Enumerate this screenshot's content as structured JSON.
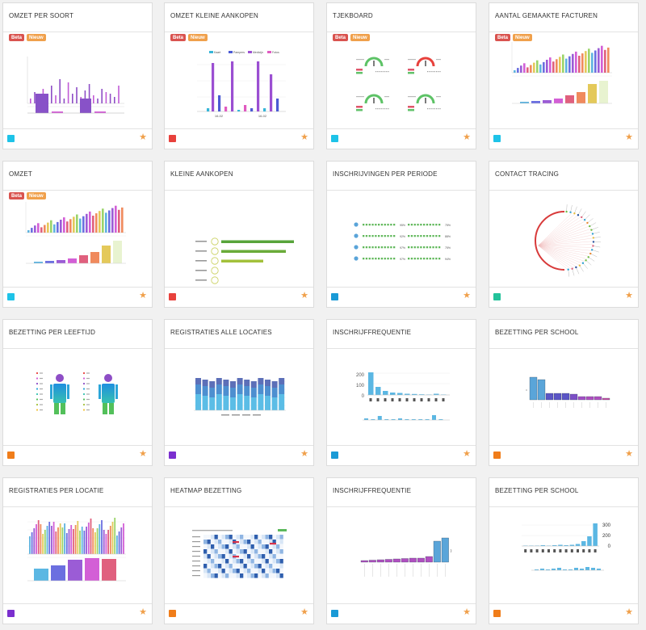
{
  "tiles": [
    {
      "title": "OMZET PER SOORT",
      "chip": "#1ec3e8",
      "badges": [
        "Beta",
        "Nieuw"
      ]
    },
    {
      "title": "OMZET KLEINE AANKOPEN",
      "chip": "#e8413c",
      "badges": [
        "Beta",
        "Nieuw"
      ]
    },
    {
      "title": "TJEKBOARD",
      "chip": "#1ec3e8",
      "badges": [
        "Beta",
        "Nieuw"
      ]
    },
    {
      "title": "AANTAL GEMAAKTE FACTUREN",
      "chip": "#1ec3e8",
      "badges": [
        "Beta",
        "Nieuw"
      ]
    },
    {
      "title": "OMZET",
      "chip": "#1ec3e8",
      "badges": [
        "Beta",
        "Nieuw"
      ]
    },
    {
      "title": "KLEINE AANKOPEN",
      "chip": "#e8413c",
      "badges": []
    },
    {
      "title": "INSCHRIJVINGEN PER PERIODE",
      "chip": "#1a9ad6",
      "badges": []
    },
    {
      "title": "CONTACT TRACING",
      "chip": "#23c29a",
      "badges": []
    },
    {
      "title": "BEZETTING PER LEEFTIJD",
      "chip": "#f07d1a",
      "badges": []
    },
    {
      "title": "REGISTRATIES ALLE LOCATIES",
      "chip": "#7b2fcf",
      "badges": []
    },
    {
      "title": "INSCHRIJFFREQUENTIE",
      "chip": "#1a9ad6",
      "badges": []
    },
    {
      "title": "BEZETTING PER SCHOOL",
      "chip": "#f07d1a",
      "badges": []
    },
    {
      "title": "REGISTRATIES PER LOCATIE",
      "chip": "#7b2fcf",
      "badges": []
    },
    {
      "title": "HEATMAP BEZETTING",
      "chip": "#f07d1a",
      "badges": []
    },
    {
      "title": "INSCHRIJFFREQUENTIE",
      "chip": "#1a9ad6",
      "badges": []
    },
    {
      "title": "BEZETTING PER SCHOOL",
      "chip": "#f07d1a",
      "badges": []
    }
  ],
  "thumb_text": {
    "kleine_aankopen_legend": [
      "Kaart",
      "Pampers",
      "Medicijn",
      "Fotos"
    ],
    "kleine_aankopen_dates": [
      "16-02",
      "16-02"
    ],
    "perioden_values": [
      "95%",
      "75%",
      "92%",
      "88%",
      "97%",
      "75%",
      "97%",
      "94%"
    ],
    "inschrijf_y_ticks": [
      "200",
      "100",
      "0"
    ],
    "school_y_ticks": [
      "300",
      "200",
      "0"
    ]
  },
  "star_glyph": "★"
}
